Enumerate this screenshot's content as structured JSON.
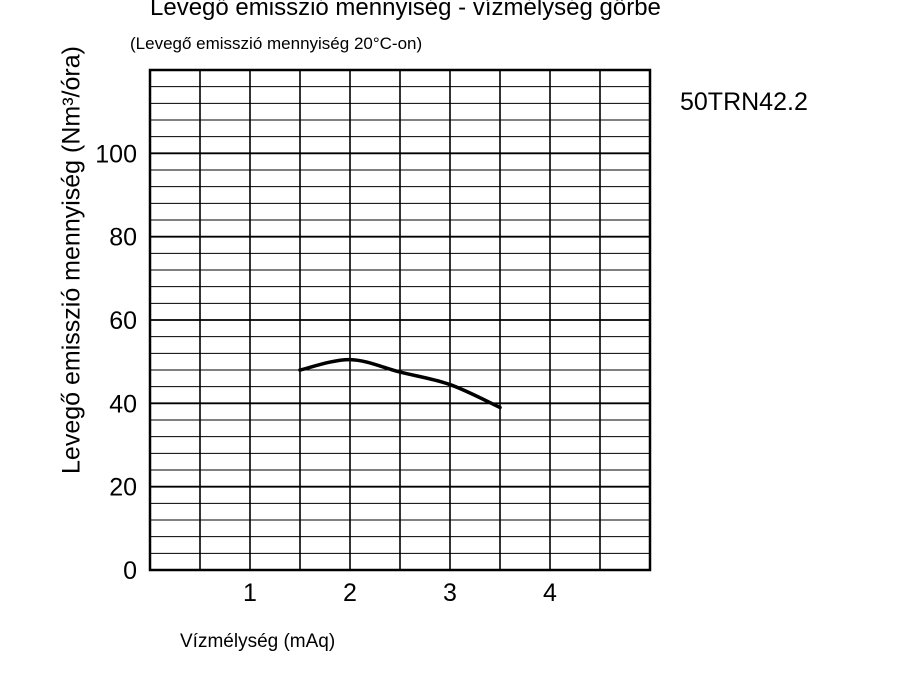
{
  "chart_data": {
    "type": "line",
    "title": "Levegő emisszió mennyiség - vízmélység görbe",
    "subtitle": "(Levegő emisszió mennyiség 20°C-on)",
    "annotation": "50TRN42.2",
    "xlabel": "Vízmélység (mAq)",
    "ylabel": "Levegő emisszió mennyiség (Nm³/óra)",
    "xlim": [
      0,
      5
    ],
    "ylim": [
      0,
      120
    ],
    "xticks": [
      "1",
      "2",
      "3",
      "4"
    ],
    "yticks": [
      "0",
      "20",
      "40",
      "60",
      "80",
      "100"
    ],
    "grid": true,
    "series": [
      {
        "x": [
          1.5,
          2.0,
          2.5,
          3.0,
          3.5
        ],
        "y": [
          48,
          50.5,
          47.5,
          44.5,
          39
        ],
        "color": "#000000"
      }
    ]
  }
}
